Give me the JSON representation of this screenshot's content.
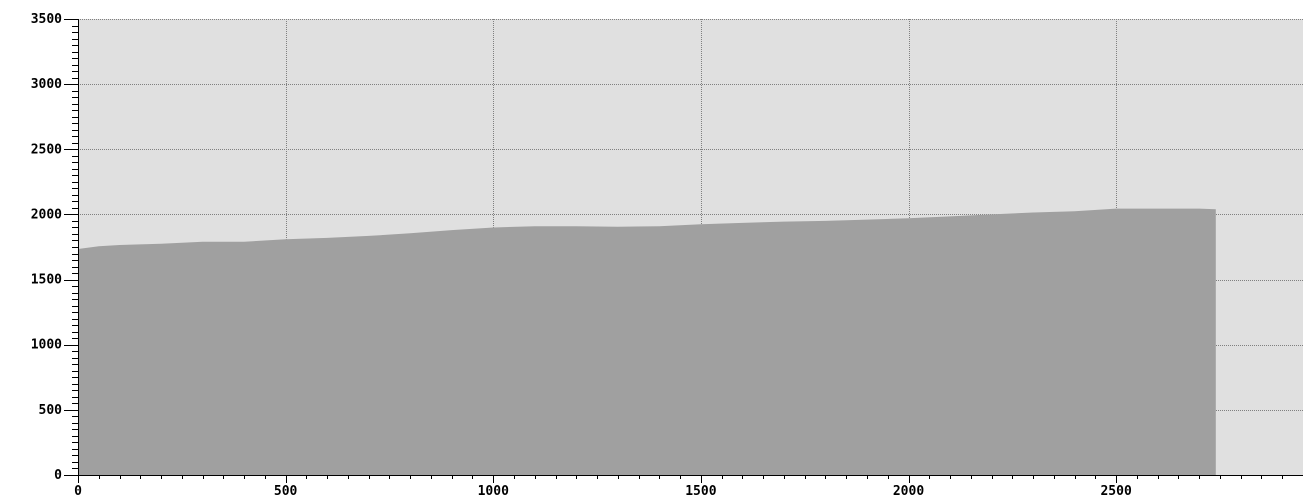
{
  "chart_data": {
    "type": "area",
    "title": "",
    "xlabel": "",
    "ylabel": "",
    "xlim": [
      0,
      2950
    ],
    "ylim": [
      0,
      3500
    ],
    "x_ticks": [
      0,
      500,
      1000,
      1500,
      2000,
      2500
    ],
    "x_tick_labels": [
      "0",
      "500",
      "1000",
      "1500",
      "2000",
      "2500"
    ],
    "y_ticks": [
      0,
      500,
      1000,
      1500,
      2000,
      2500,
      3000,
      3500
    ],
    "y_tick_labels": [
      "0",
      "500",
      "1000",
      "1500",
      "2000",
      "2500",
      "3000",
      "3500"
    ],
    "grid": true,
    "legend": "none",
    "series": [
      {
        "x": [
          0,
          50,
          100,
          200,
          300,
          400,
          500,
          600,
          700,
          800,
          900,
          1000,
          1100,
          1200,
          1300,
          1400,
          1500,
          1600,
          1700,
          1800,
          1900,
          2000,
          2100,
          2200,
          2300,
          2400,
          2500,
          2600,
          2700,
          2740
        ],
        "y": [
          1735,
          1755,
          1765,
          1775,
          1790,
          1790,
          1810,
          1820,
          1835,
          1855,
          1880,
          1900,
          1910,
          1910,
          1905,
          1910,
          1925,
          1935,
          1945,
          1950,
          1960,
          1970,
          1985,
          2000,
          2015,
          2025,
          2045,
          2045,
          2045,
          2040
        ],
        "values": [
          1735,
          1755,
          1765,
          1775,
          1790,
          1790,
          1810,
          1820,
          1835,
          1855,
          1880,
          1900,
          1910,
          1910,
          1905,
          1910,
          1925,
          1935,
          1945,
          1950,
          1960,
          1970,
          1985,
          2000,
          2015,
          2025,
          2045,
          2045,
          2045,
          2040
        ]
      }
    ],
    "colors": {
      "plot_background": "#e0e0e0",
      "area_fill": "#a0a0a0",
      "grid": "#808080",
      "axis": "#000000"
    }
  }
}
